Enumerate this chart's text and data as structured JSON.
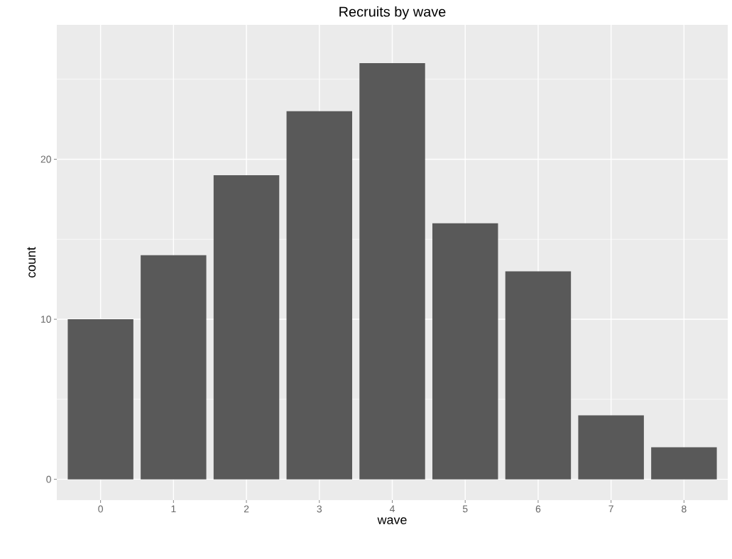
{
  "chart_data": {
    "type": "bar",
    "title": "Recruits by wave",
    "xlabel": "wave",
    "ylabel": "count",
    "categories": [
      "0",
      "1",
      "2",
      "3",
      "4",
      "5",
      "6",
      "7",
      "8"
    ],
    "values": [
      10,
      14,
      19,
      23,
      26,
      16,
      13,
      4,
      2
    ],
    "color": "#595959",
    "ylim": [
      -1.3,
      28.4
    ],
    "yticks": [
      0,
      {
        "value": 5,
        "label": null
      },
      10,
      {
        "value": 15,
        "label": null
      },
      20,
      {
        "value": 25,
        "label": null
      }
    ],
    "grid": true
  }
}
